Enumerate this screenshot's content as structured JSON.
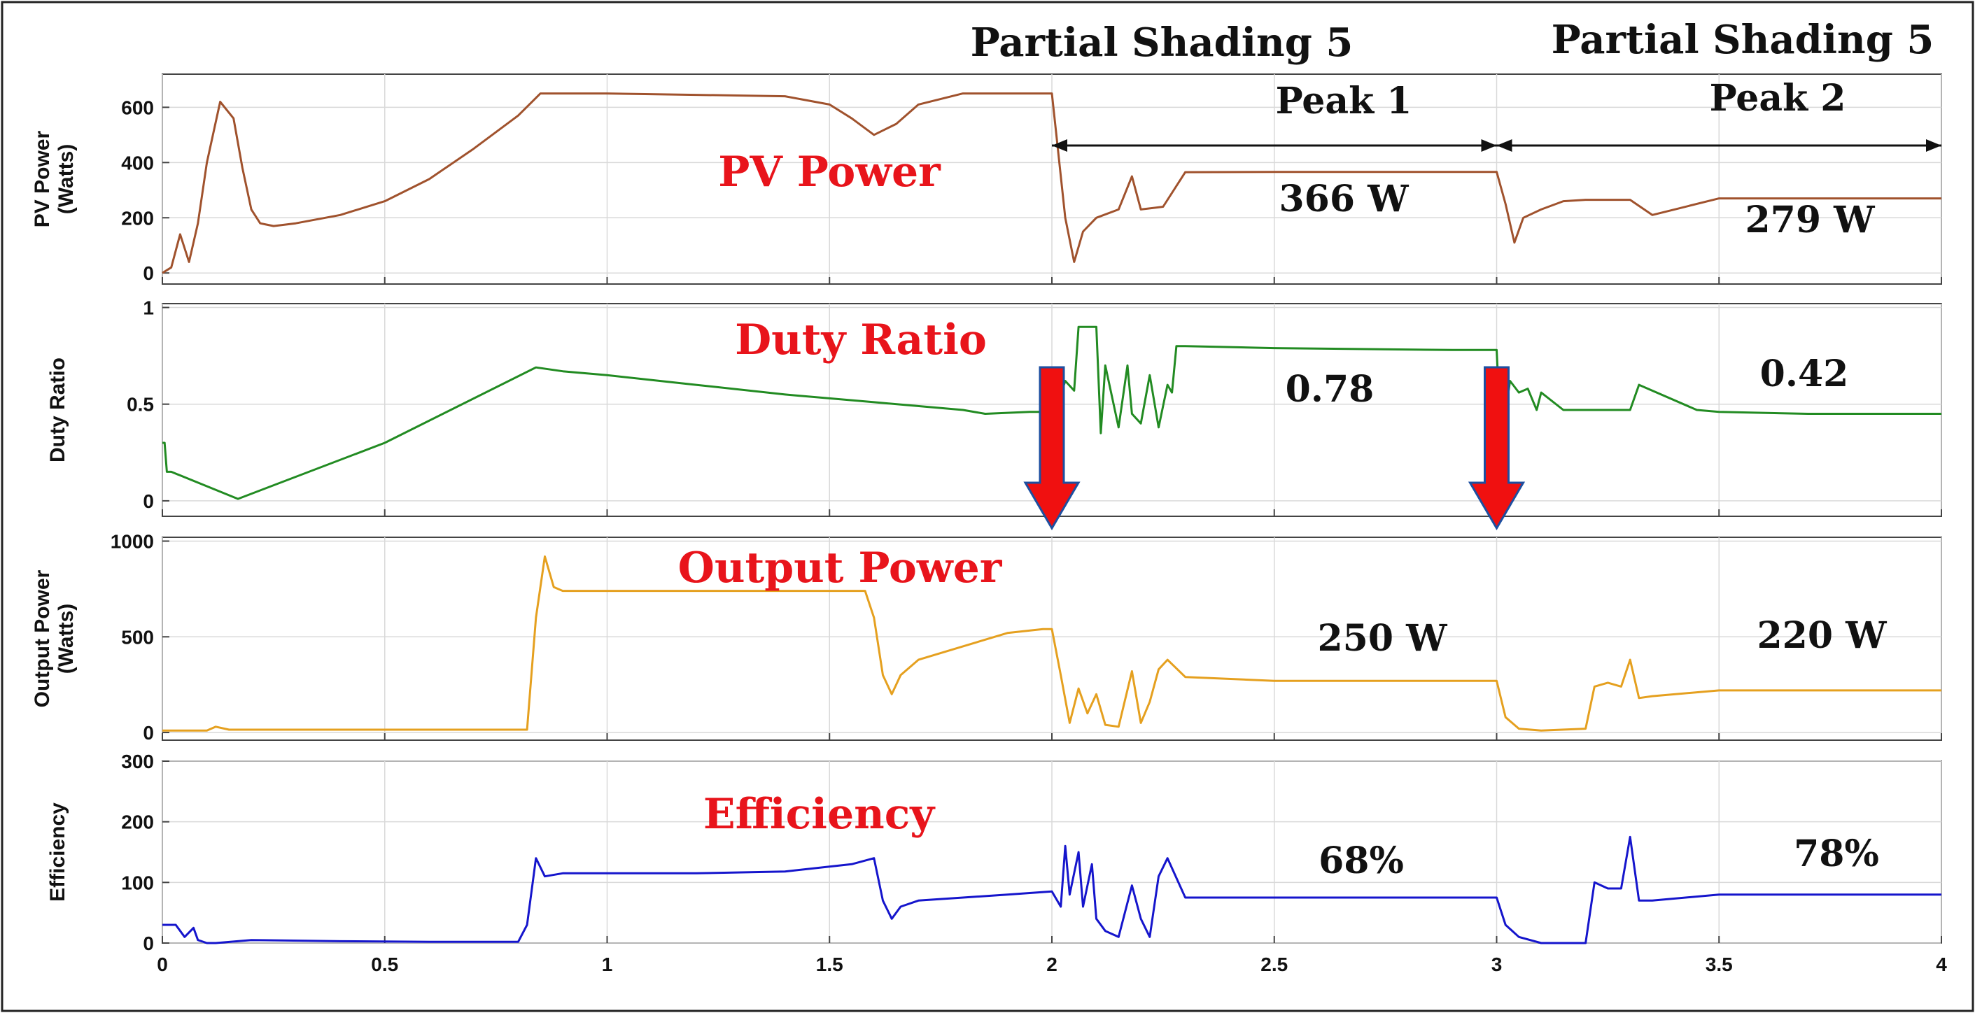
{
  "header": {
    "label_left": "Partial Shading 5",
    "label_right": "Partial Shading 5",
    "peak1": "Peak 1",
    "peak2": "Peak 2"
  },
  "chart_data": [
    {
      "type": "line",
      "id": "pv",
      "title": "PV Power",
      "ylabel": [
        "PV Power",
        "(Watts)"
      ],
      "color": "#a0522d",
      "ylim": [
        -40,
        720
      ],
      "yticks": [
        0,
        200,
        400,
        600
      ],
      "xlim": [
        0,
        4
      ],
      "xticks": [
        0,
        0.5,
        1,
        1.5,
        2,
        2.5,
        3,
        3.5,
        4
      ],
      "annotations": [
        "366 W",
        "279 W"
      ],
      "x": [
        0,
        0.02,
        0.04,
        0.06,
        0.08,
        0.1,
        0.13,
        0.16,
        0.18,
        0.2,
        0.22,
        0.25,
        0.3,
        0.4,
        0.5,
        0.6,
        0.7,
        0.8,
        0.85,
        0.9,
        1.0,
        1.2,
        1.4,
        1.5,
        1.55,
        1.6,
        1.65,
        1.7,
        1.8,
        1.9,
        2.0,
        2.01,
        2.03,
        2.05,
        2.07,
        2.1,
        2.15,
        2.18,
        2.2,
        2.25,
        2.3,
        2.5,
        2.8,
        2.99,
        3.0,
        3.02,
        3.04,
        3.06,
        3.1,
        3.15,
        3.2,
        3.3,
        3.35,
        3.4,
        3.5,
        4.0
      ],
      "y": [
        0,
        20,
        140,
        40,
        180,
        400,
        620,
        560,
        380,
        230,
        180,
        170,
        180,
        210,
        260,
        340,
        450,
        570,
        650,
        650,
        650,
        645,
        640,
        610,
        560,
        500,
        540,
        610,
        650,
        650,
        650,
        500,
        200,
        40,
        150,
        200,
        230,
        350,
        230,
        240,
        365,
        366,
        366,
        366,
        366,
        250,
        110,
        200,
        230,
        260,
        265,
        265,
        210,
        230,
        270,
        270
      ]
    },
    {
      "type": "line",
      "id": "duty",
      "title": "Duty Ratio",
      "ylabel": [
        "Duty Ratio"
      ],
      "color": "#228b22",
      "ylim": [
        -0.08,
        1.02
      ],
      "yticks": [
        0,
        0.5,
        1
      ],
      "ytick_labels": [
        "0",
        "0.5",
        "1"
      ],
      "xlim": [
        0,
        4
      ],
      "annotations": [
        "0.78",
        "0.42"
      ],
      "x": [
        0,
        0.005,
        0.01,
        0.02,
        0.17,
        0.5,
        0.84,
        0.9,
        1.0,
        1.2,
        1.4,
        1.6,
        1.8,
        1.85,
        1.95,
        2.0,
        2.01,
        2.02,
        2.03,
        2.05,
        2.06,
        2.07,
        2.1,
        2.11,
        2.12,
        2.15,
        2.17,
        2.18,
        2.2,
        2.22,
        2.24,
        2.26,
        2.27,
        2.28,
        2.3,
        2.5,
        2.9,
        2.99,
        3.0,
        3.01,
        3.03,
        3.05,
        3.07,
        3.09,
        3.1,
        3.15,
        3.3,
        3.32,
        3.45,
        3.5,
        3.7,
        4.0
      ],
      "y": [
        0.3,
        0.3,
        0.15,
        0.15,
        0.01,
        0.3,
        0.69,
        0.67,
        0.65,
        0.6,
        0.55,
        0.51,
        0.47,
        0.45,
        0.46,
        0.46,
        0.3,
        0.55,
        0.62,
        0.57,
        0.9,
        0.9,
        0.9,
        0.35,
        0.7,
        0.38,
        0.7,
        0.45,
        0.4,
        0.65,
        0.38,
        0.6,
        0.56,
        0.8,
        0.8,
        0.79,
        0.78,
        0.78,
        0.78,
        0.3,
        0.62,
        0.56,
        0.58,
        0.47,
        0.56,
        0.47,
        0.47,
        0.6,
        0.47,
        0.46,
        0.45,
        0.45
      ]
    },
    {
      "type": "line",
      "id": "output",
      "title": "Output Power",
      "ylabel": [
        "Output Power",
        "(Watts)"
      ],
      "color": "#e5a01f",
      "ylim": [
        -40,
        1020
      ],
      "yticks": [
        0,
        500,
        1000
      ],
      "xlim": [
        0,
        4
      ],
      "annotations": [
        "250 W",
        "220 W"
      ],
      "x": [
        0,
        0.1,
        0.12,
        0.15,
        0.8,
        0.82,
        0.84,
        0.86,
        0.88,
        0.9,
        1.0,
        1.2,
        1.5,
        1.58,
        1.6,
        1.62,
        1.64,
        1.66,
        1.7,
        1.8,
        1.9,
        1.98,
        2.0,
        2.02,
        2.04,
        2.06,
        2.08,
        2.1,
        2.12,
        2.15,
        2.18,
        2.2,
        2.22,
        2.24,
        2.26,
        2.3,
        2.5,
        2.98,
        3.0,
        3.02,
        3.05,
        3.1,
        3.2,
        3.22,
        3.25,
        3.28,
        3.3,
        3.32,
        3.35,
        3.5,
        4.0
      ],
      "y": [
        10,
        10,
        30,
        15,
        15,
        15,
        600,
        920,
        760,
        740,
        740,
        740,
        740,
        740,
        600,
        300,
        200,
        300,
        380,
        450,
        520,
        540,
        540,
        300,
        50,
        230,
        100,
        200,
        40,
        30,
        320,
        50,
        160,
        330,
        380,
        290,
        270,
        270,
        270,
        80,
        20,
        10,
        20,
        240,
        260,
        240,
        380,
        180,
        190,
        220,
        220
      ]
    },
    {
      "type": "line",
      "id": "efficiency",
      "title": "Efficiency",
      "ylabel": [
        "Efficiency"
      ],
      "color": "#1515cc",
      "ylim": [
        0,
        300
      ],
      "yticks": [
        0,
        100,
        200,
        300
      ],
      "xlim": [
        0,
        4
      ],
      "xticks": [
        0,
        0.5,
        1,
        1.5,
        2,
        2.5,
        3,
        3.5,
        4
      ],
      "xtick_labels": [
        "0",
        "0.5",
        "1",
        "1.5",
        "2",
        "2.5",
        "3",
        "3.5",
        "4"
      ],
      "annotations": [
        "68%",
        "78%"
      ],
      "x": [
        0,
        0.03,
        0.05,
        0.07,
        0.08,
        0.1,
        0.12,
        0.2,
        0.4,
        0.6,
        0.8,
        0.82,
        0.84,
        0.86,
        0.9,
        1.0,
        1.2,
        1.4,
        1.55,
        1.6,
        1.62,
        1.64,
        1.66,
        1.7,
        1.8,
        1.9,
        2.0,
        2.02,
        2.03,
        2.04,
        2.06,
        2.07,
        2.09,
        2.1,
        2.12,
        2.15,
        2.18,
        2.2,
        2.22,
        2.24,
        2.26,
        2.3,
        2.5,
        3.0,
        3.02,
        3.05,
        3.1,
        3.2,
        3.22,
        3.25,
        3.28,
        3.3,
        3.32,
        3.35,
        3.5,
        4.0
      ],
      "y": [
        30,
        30,
        10,
        25,
        5,
        0,
        0,
        5,
        3,
        2,
        2,
        30,
        140,
        110,
        115,
        115,
        115,
        118,
        130,
        140,
        70,
        40,
        60,
        70,
        75,
        80,
        85,
        60,
        160,
        80,
        150,
        60,
        130,
        40,
        20,
        10,
        95,
        40,
        10,
        110,
        140,
        75,
        75,
        75,
        30,
        10,
        0,
        0,
        100,
        90,
        90,
        175,
        70,
        70,
        80,
        80
      ]
    }
  ]
}
